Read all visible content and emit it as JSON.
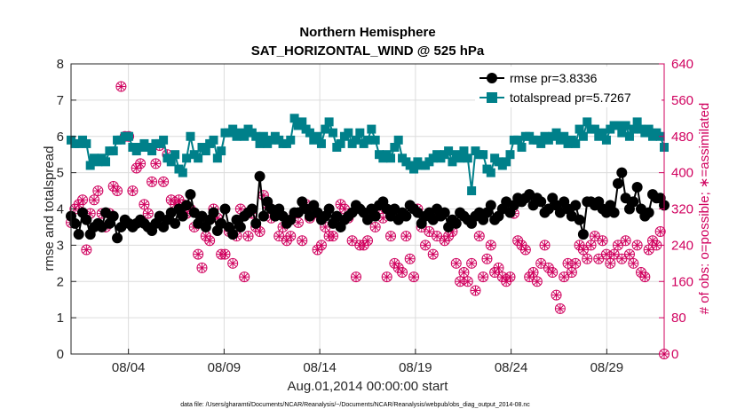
{
  "chart_data": {
    "type": "line",
    "title": [
      "Northern Hemisphere",
      "SAT_HORIZONTAL_WIND @ 525 hPa"
    ],
    "xlabel": "Aug.01,2014 00:00:00 start",
    "ylabel_left": "rmse and totalspread",
    "ylabel_right": "# of obs: o=possible; ∗=assimilated",
    "footer": "data file: /Users/gharamti/Documents/NCAR/Reanalysis/~/Documents/NCAR/Reanalysis/webpub/obs_diag_output_2014-08.nc",
    "x_unit": "day of August 2014",
    "xlim": [
      1.0,
      32.0
    ],
    "ylim_left": [
      0,
      8
    ],
    "ylim_right": [
      0,
      640
    ],
    "x_ticks": [
      4,
      9,
      14,
      19,
      24,
      29
    ],
    "x_tick_labels": [
      "08/04",
      "08/09",
      "08/14",
      "08/19",
      "08/24",
      "08/29"
    ],
    "y_ticks_left": [
      "0",
      "1",
      "2",
      "3",
      "4",
      "5",
      "6",
      "7",
      "8"
    ],
    "y_ticks_right": [
      "0",
      "80",
      "160",
      "240",
      "320",
      "400",
      "480",
      "560",
      "640"
    ],
    "grid": true,
    "legend_position": "top-right",
    "series": [
      {
        "name": "rmse pr=3.8336",
        "axis": "left",
        "color": "#000000",
        "marker": "filled-circle",
        "values": [
          3.8,
          3.6,
          3.3,
          3.9,
          3.7,
          3.3,
          3.5,
          3.6,
          3.5,
          3.9,
          3.6,
          3.8,
          3.2,
          3.5,
          3.7,
          3.6,
          3.5,
          3.6,
          3.7,
          3.6,
          3.5,
          3.4,
          3.6,
          3.8,
          3.5,
          3.7,
          3.9,
          3.6,
          4.0,
          3.8,
          4.1,
          4.4,
          3.9,
          3.6,
          3.8,
          3.5,
          3.7,
          3.9,
          3.4,
          3.6,
          4.0,
          3.5,
          3.3,
          3.7,
          3.5,
          3.8,
          3.9,
          4.0,
          3.6,
          4.9,
          3.8,
          4.2,
          4.0,
          3.8,
          4.0,
          3.8,
          3.6,
          3.7,
          3.9,
          3.9,
          4.2,
          4.0,
          3.8,
          4.1,
          3.9,
          3.7,
          3.8,
          4.0,
          3.6,
          3.8,
          3.5,
          3.7,
          3.8,
          3.9,
          4.1,
          4.0,
          3.9,
          3.7,
          4.0,
          3.8,
          4.1,
          4.2,
          4.0,
          3.8,
          4.0,
          3.7,
          3.9,
          3.8,
          4.1,
          4.0,
          3.9,
          3.6,
          3.8,
          3.9,
          3.7,
          4.0,
          3.8,
          3.9,
          3.5,
          3.7,
          3.6,
          3.9,
          3.8,
          3.7,
          3.6,
          3.8,
          3.9,
          3.7,
          3.9,
          4.1,
          3.7,
          3.8,
          4.0,
          4.2,
          3.9,
          4.1,
          4.3,
          4.2,
          4.3,
          4.4,
          4.1,
          4.3,
          4.2,
          3.9,
          4.0,
          4.3,
          4.1,
          3.9,
          4.2,
          4.0,
          3.8,
          4.1,
          3.7,
          3.3,
          4.2,
          4.2,
          4.1,
          4.2,
          4.0,
          3.9,
          4.1,
          3.9,
          4.7,
          5.0,
          4.3,
          4.0,
          4.2,
          4.6,
          4.0,
          3.8,
          3.9,
          4.4,
          4.3,
          4.3,
          4.1
        ]
      },
      {
        "name": "totalspread pr=5.7267",
        "axis": "left",
        "color": "#00808a",
        "marker": "filled-square",
        "values": [
          5.9,
          5.8,
          5.8,
          5.9,
          5.8,
          5.2,
          5.4,
          5.3,
          5.4,
          5.3,
          5.6,
          5.6,
          5.9,
          5.9,
          6.0,
          6.0,
          5.7,
          5.6,
          5.7,
          5.8,
          5.7,
          5.6,
          5.8,
          5.8,
          5.9,
          5.4,
          5.3,
          5.5,
          5.1,
          5.0,
          5.4,
          6.0,
          5.5,
          5.4,
          5.7,
          5.6,
          5.8,
          5.9,
          5.4,
          5.6,
          6.1,
          6.1,
          6.2,
          6.0,
          6.1,
          6.0,
          6.2,
          6.1,
          6.0,
          5.8,
          6.0,
          5.8,
          5.9,
          6.0,
          5.9,
          5.8,
          5.8,
          5.9,
          6.5,
          6.3,
          6.4,
          6.2,
          6.1,
          5.9,
          6.0,
          5.8,
          6.2,
          6.4,
          6.1,
          5.7,
          5.8,
          6.0,
          6.1,
          5.8,
          5.9,
          6.1,
          5.8,
          5.9,
          6.2,
          5.9,
          5.5,
          5.4,
          5.5,
          5.4,
          5.7,
          5.9,
          5.4,
          5.3,
          5.2,
          5.1,
          5.3,
          5.2,
          5.2,
          5.3,
          5.4,
          5.5,
          5.4,
          5.5,
          5.6,
          5.3,
          5.5,
          5.4,
          5.6,
          5.4,
          4.5,
          5.6,
          5.5,
          5.5,
          5.1,
          5.0,
          5.4,
          5.3,
          5.2,
          5.3,
          5.5,
          5.9,
          5.9,
          5.7,
          6.0,
          6.0,
          5.9,
          5.9,
          5.8,
          6.0,
          5.9,
          6.0,
          6.1,
          5.9,
          6.0,
          5.8,
          5.9,
          5.8,
          6.2,
          6.0,
          6.4,
          6.2,
          6.2,
          6.0,
          6.1,
          5.9,
          6.2,
          6.3,
          6.3,
          6.1,
          6.3,
          6.0,
          6.2,
          6.4,
          6.2,
          6.1,
          6.2,
          6.0,
          6.1,
          6.0,
          5.7
        ]
      },
      {
        "name": "# of obs possible",
        "axis": "right",
        "color": "#d0005e",
        "marker": "open-circle",
        "values": [
          290,
          320,
          330,
          340,
          230,
          310,
          340,
          360,
          310,
          280,
          310,
          370,
          360,
          590,
          480,
          480,
          360,
          410,
          420,
          330,
          310,
          380,
          420,
          460,
          380,
          440,
          340,
          330,
          340,
          330,
          310,
          320,
          280,
          220,
          190,
          260,
          250,
          320,
          300,
          220,
          220,
          270,
          200,
          260,
          320,
          170,
          260,
          310,
          280,
          270,
          350,
          330,
          300,
          310,
          260,
          280,
          250,
          260,
          310,
          290,
          250,
          330,
          300,
          310,
          230,
          240,
          280,
          260,
          260,
          290,
          330,
          320,
          300,
          250,
          170,
          240,
          240,
          250,
          310,
          280,
          320,
          300,
          170,
          260,
          200,
          190,
          180,
          260,
          210,
          170,
          320,
          280,
          240,
          270,
          220,
          260,
          310,
          250,
          260,
          270,
          200,
          160,
          180,
          160,
          200,
          140,
          260,
          170,
          210,
          240,
          180,
          190,
          170,
          160,
          170,
          310,
          250,
          240,
          230,
          170,
          180,
          160,
          200,
          240,
          190,
          180,
          130,
          100,
          170,
          200,
          180,
          200,
          240,
          230,
          210,
          240,
          260,
          210,
          250,
          220,
          200,
          220,
          240,
          210,
          250,
          220,
          200,
          240,
          180,
          170,
          230,
          250,
          240,
          270,
          0
        ]
      },
      {
        "name": "# of obs assimilated",
        "axis": "right",
        "color": "#d0005e",
        "marker": "asterisk",
        "values": [
          290,
          320,
          330,
          340,
          230,
          310,
          340,
          360,
          310,
          280,
          310,
          370,
          360,
          590,
          480,
          480,
          360,
          410,
          420,
          330,
          310,
          380,
          420,
          460,
          380,
          440,
          340,
          330,
          340,
          330,
          310,
          320,
          280,
          220,
          190,
          260,
          250,
          320,
          300,
          220,
          220,
          270,
          200,
          260,
          320,
          170,
          260,
          310,
          280,
          270,
          350,
          330,
          300,
          310,
          260,
          280,
          250,
          260,
          310,
          290,
          250,
          330,
          300,
          310,
          230,
          240,
          280,
          260,
          260,
          290,
          330,
          320,
          300,
          250,
          170,
          240,
          240,
          250,
          310,
          280,
          320,
          300,
          170,
          260,
          200,
          190,
          180,
          260,
          210,
          170,
          320,
          280,
          240,
          270,
          220,
          260,
          310,
          250,
          260,
          270,
          200,
          160,
          180,
          160,
          200,
          140,
          260,
          170,
          210,
          240,
          180,
          190,
          170,
          160,
          170,
          310,
          250,
          240,
          230,
          170,
          180,
          160,
          200,
          240,
          190,
          180,
          130,
          100,
          170,
          200,
          180,
          200,
          240,
          230,
          210,
          240,
          260,
          210,
          250,
          220,
          200,
          220,
          240,
          210,
          250,
          220,
          200,
          240,
          180,
          170,
          230,
          250,
          240,
          270,
          0
        ]
      }
    ]
  }
}
